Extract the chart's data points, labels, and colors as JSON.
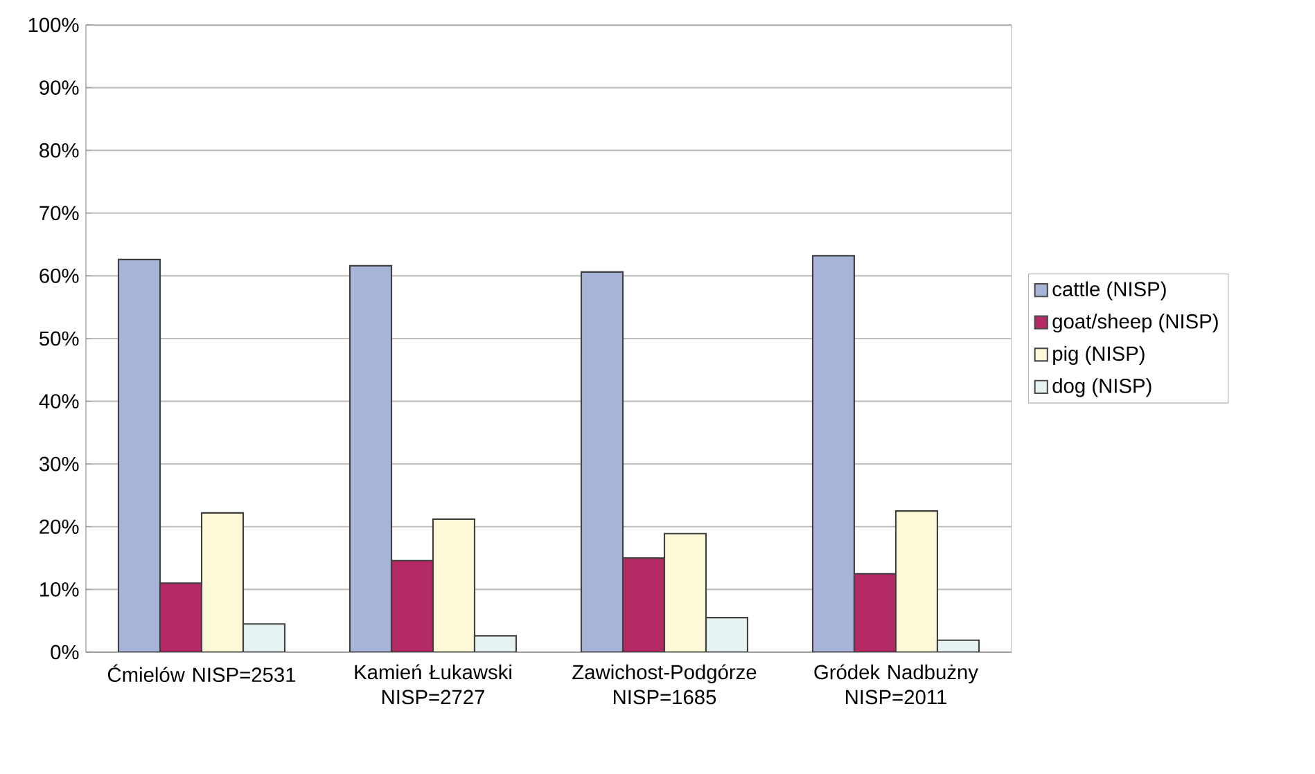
{
  "chart_data": {
    "type": "bar",
    "categories": [
      "Ćmielów NISP=2531",
      "Kamień Łukawski NISP=2727",
      "Zawichost-Podgórze NISP=1685",
      "Gródek Nadbużny NISP=2011"
    ],
    "series": [
      {
        "name": "cattle (NISP)",
        "color": "#a9b4d9",
        "values": [
          62.6,
          61.6,
          60.6,
          63.2
        ]
      },
      {
        "name": "goat/sheep (NISP)",
        "color": "#b32a64",
        "values": [
          11.0,
          14.6,
          15.0,
          12.5
        ]
      },
      {
        "name": "pig (NISP)",
        "color": "#fdf8d8",
        "values": [
          22.2,
          21.2,
          18.9,
          22.5
        ]
      },
      {
        "name": "dog (NISP)",
        "color": "#e6f2f2",
        "values": [
          4.5,
          2.6,
          5.5,
          1.9
        ]
      }
    ],
    "ylim": [
      0,
      100
    ],
    "yticks": [
      {
        "value": 0,
        "label": "0%"
      },
      {
        "value": 10,
        "label": "10%"
      },
      {
        "value": 20,
        "label": "20%"
      },
      {
        "value": 30,
        "label": "30%"
      },
      {
        "value": 40,
        "label": "40%"
      },
      {
        "value": 50,
        "label": "50%"
      },
      {
        "value": 60,
        "label": "60%"
      },
      {
        "value": 70,
        "label": "70%"
      },
      {
        "value": 80,
        "label": "80%"
      },
      {
        "value": 90,
        "label": "90%"
      },
      {
        "value": 100,
        "label": "100%"
      }
    ],
    "grid": "y",
    "legend": "right"
  }
}
